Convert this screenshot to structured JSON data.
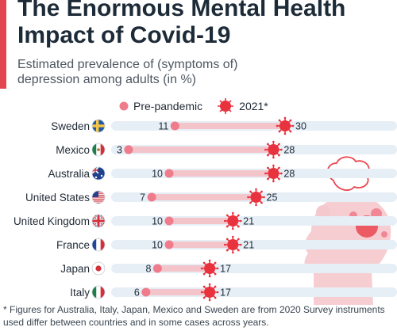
{
  "title": "The Enormous Mental Health Impact of Covid-19",
  "subtitle": "Estimated prevalence of (symptoms of) depression among adults (in %)",
  "legend": {
    "pre": "Pre-pandemic",
    "post": "2021*"
  },
  "footnote": "* Figures for Australia, Italy, Japan, Mexico and Sweden are from 2020 Survey instruments used differ between countries and in some cases across years.",
  "colors": {
    "accent": "#e2474f",
    "pre": "#f07b8a",
    "post": "#e8323e",
    "track": "#e6eef6",
    "bar": "#f3c4c9"
  },
  "chart_data": {
    "type": "dumbbell",
    "title": "The Enormous Mental Health Impact of Covid-19",
    "subtitle": "Estimated prevalence of (symptoms of) depression among adults (in %)",
    "xlabel": "",
    "ylabel": "",
    "xlim": [
      0,
      35
    ],
    "grid": false,
    "legend_position": "top",
    "categories": [
      "Sweden",
      "Mexico",
      "Australia",
      "United States",
      "United Kingdom",
      "France",
      "Japan",
      "Italy"
    ],
    "flag_icons": [
      "sweden-flag-icon",
      "mexico-flag-icon",
      "australia-flag-icon",
      "united-states-flag-icon",
      "united-kingdom-flag-icon",
      "france-flag-icon",
      "japan-flag-icon",
      "italy-flag-icon"
    ],
    "series": [
      {
        "name": "Pre-pandemic",
        "values": [
          11,
          3,
          10,
          7,
          10,
          10,
          8,
          6
        ]
      },
      {
        "name": "2021*",
        "values": [
          30,
          28,
          28,
          25,
          21,
          21,
          17,
          17
        ]
      }
    ]
  }
}
